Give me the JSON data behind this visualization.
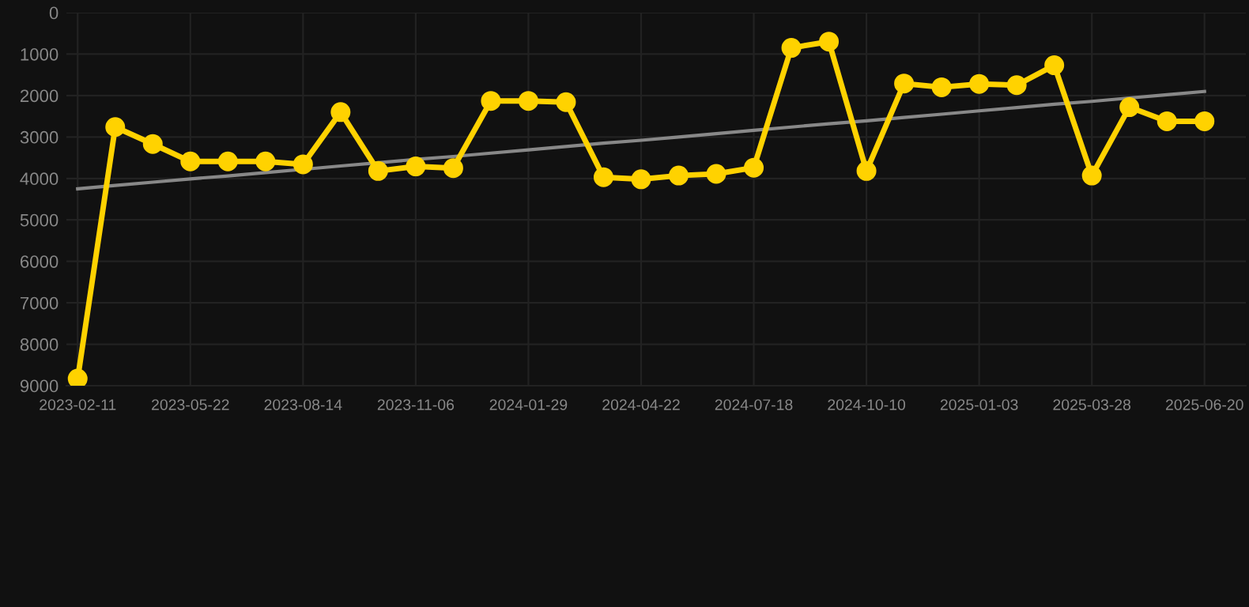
{
  "chart_data": {
    "type": "line",
    "categories": [
      "2023-02-11",
      null,
      null,
      "2023-05-22",
      null,
      null,
      "2023-08-14",
      null,
      null,
      "2023-11-06",
      null,
      null,
      "2024-01-29",
      null,
      null,
      "2024-04-22",
      null,
      null,
      "2024-07-18",
      null,
      null,
      "2024-10-10",
      null,
      null,
      "2025-01-03",
      null,
      null,
      "2025-03-28",
      null,
      null,
      "2025-06-20"
    ],
    "series": [
      {
        "color": "#ffd200",
        "marker": "circle",
        "values": [
          8830,
          2760,
          3170,
          3590,
          3590,
          3590,
          3660,
          2400,
          3820,
          3710,
          3750,
          2130,
          2130,
          2160,
          3970,
          4020,
          3930,
          3890,
          3740,
          850,
          700,
          3820,
          1710,
          1800,
          1720,
          1750,
          1270,
          3930,
          2280,
          2620,
          2620
        ]
      },
      {
        "color": "#888888",
        "marker": "none",
        "values": [
          4250,
          4170,
          4090,
          4010,
          3940,
          3860,
          3780,
          3700,
          3620,
          3540,
          3470,
          3390,
          3310,
          3230,
          3150,
          3080,
          3000,
          2920,
          2840,
          2760,
          2680,
          2610,
          2530,
          2450,
          2370,
          2290,
          2210,
          2140,
          2060,
          1980,
          1900
        ]
      }
    ],
    "ylim": [
      9000,
      0
    ],
    "yticks": [
      0,
      1000,
      2000,
      3000,
      4000,
      5000,
      6000,
      7000,
      8000,
      9000
    ],
    "grid": true,
    "line_style": "solid"
  }
}
